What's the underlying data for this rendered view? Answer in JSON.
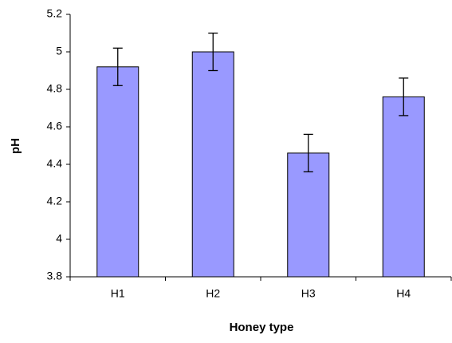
{
  "chart_data": {
    "type": "bar",
    "xlabel": "Honey type",
    "ylabel": "pH",
    "categories": [
      "H1",
      "H2",
      "H3",
      "H4"
    ],
    "values": [
      4.92,
      5,
      4.46,
      4.76
    ],
    "errors": [
      0.1,
      0.1,
      0.1,
      0.1
    ],
    "color": "#9999ff",
    "ylim": [
      3.8,
      5.2
    ],
    "yticks": [
      3.8,
      4,
      4.2,
      4.4,
      4.6,
      4.8,
      5,
      5.2
    ],
    "grid": false
  }
}
